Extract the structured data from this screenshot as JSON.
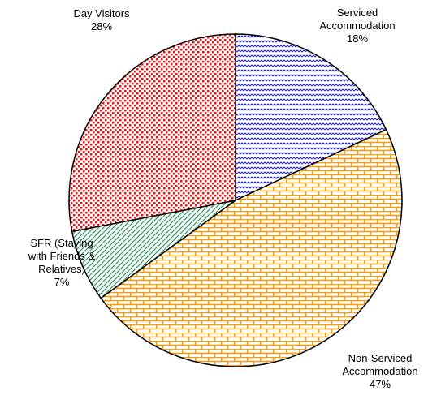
{
  "chart_data": {
    "type": "pie",
    "categories": [
      "Serviced Accommodation",
      "Non-Serviced Accommodation",
      "SFR (Staying with Friends & Relatives)",
      "Day Visitors"
    ],
    "values": [
      18,
      47,
      7,
      28
    ],
    "value_labels": [
      "18%",
      "47%",
      "7%",
      "28%"
    ],
    "colors": [
      "#2222cc",
      "#ff9900",
      "#339966",
      "#ee1111"
    ]
  }
}
